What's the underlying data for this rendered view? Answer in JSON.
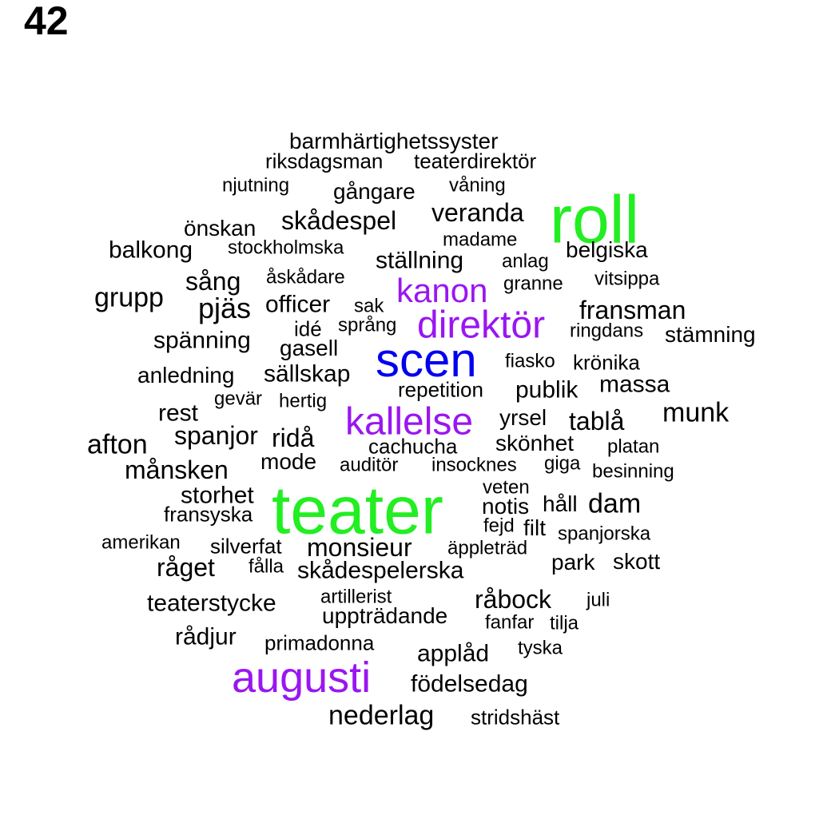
{
  "page_number": "42",
  "colors": {
    "default": "#000000",
    "green": "#22ee22",
    "blue": "#0000ee",
    "purple": "#9a16f0"
  },
  "words": [
    {
      "text": "barmhärtighetssyster",
      "color": "default"
    },
    {
      "text": "riksdagsman",
      "color": "default"
    },
    {
      "text": "teaterdirektör",
      "color": "default"
    },
    {
      "text": "njutning",
      "color": "default"
    },
    {
      "text": "gångare",
      "color": "default"
    },
    {
      "text": "våning",
      "color": "default"
    },
    {
      "text": "roll",
      "color": "green"
    },
    {
      "text": "veranda",
      "color": "default"
    },
    {
      "text": "önskan",
      "color": "default"
    },
    {
      "text": "skådespel",
      "color": "default"
    },
    {
      "text": "madame",
      "color": "default"
    },
    {
      "text": "balkong",
      "color": "default"
    },
    {
      "text": "stockholmska",
      "color": "default"
    },
    {
      "text": "belgiska",
      "color": "default"
    },
    {
      "text": "ställning",
      "color": "default"
    },
    {
      "text": "anlag",
      "color": "default"
    },
    {
      "text": "sång",
      "color": "default"
    },
    {
      "text": "åskådare",
      "color": "default"
    },
    {
      "text": "vitsippa",
      "color": "default"
    },
    {
      "text": "granne",
      "color": "default"
    },
    {
      "text": "kanon",
      "color": "purple"
    },
    {
      "text": "grupp",
      "color": "default"
    },
    {
      "text": "pjäs",
      "color": "default"
    },
    {
      "text": "officer",
      "color": "default"
    },
    {
      "text": "sak",
      "color": "default"
    },
    {
      "text": "fransman",
      "color": "default"
    },
    {
      "text": "direktör",
      "color": "purple"
    },
    {
      "text": "idé",
      "color": "default"
    },
    {
      "text": "språng",
      "color": "default"
    },
    {
      "text": "ringdans",
      "color": "default"
    },
    {
      "text": "stämning",
      "color": "default"
    },
    {
      "text": "spänning",
      "color": "default"
    },
    {
      "text": "gasell",
      "color": "default"
    },
    {
      "text": "scen",
      "color": "blue"
    },
    {
      "text": "fiasko",
      "color": "default"
    },
    {
      "text": "krönika",
      "color": "default"
    },
    {
      "text": "anledning",
      "color": "default"
    },
    {
      "text": "sällskap",
      "color": "default"
    },
    {
      "text": "massa",
      "color": "default"
    },
    {
      "text": "repetition",
      "color": "default"
    },
    {
      "text": "publik",
      "color": "default"
    },
    {
      "text": "gevär",
      "color": "default"
    },
    {
      "text": "hertig",
      "color": "default"
    },
    {
      "text": "munk",
      "color": "default"
    },
    {
      "text": "rest",
      "color": "default"
    },
    {
      "text": "kallelse",
      "color": "purple"
    },
    {
      "text": "yrsel",
      "color": "default"
    },
    {
      "text": "tablå",
      "color": "default"
    },
    {
      "text": "spanjor",
      "color": "default"
    },
    {
      "text": "ridå",
      "color": "default"
    },
    {
      "text": "afton",
      "color": "default"
    },
    {
      "text": "skönhet",
      "color": "default"
    },
    {
      "text": "cachucha",
      "color": "default"
    },
    {
      "text": "platan",
      "color": "default"
    },
    {
      "text": "mode",
      "color": "default"
    },
    {
      "text": "månsken",
      "color": "default"
    },
    {
      "text": "auditör",
      "color": "default"
    },
    {
      "text": "insocknes",
      "color": "default"
    },
    {
      "text": "giga",
      "color": "default"
    },
    {
      "text": "besinning",
      "color": "default"
    },
    {
      "text": "veten",
      "color": "default"
    },
    {
      "text": "storhet",
      "color": "default"
    },
    {
      "text": "teater",
      "color": "green"
    },
    {
      "text": "dam",
      "color": "default"
    },
    {
      "text": "håll",
      "color": "default"
    },
    {
      "text": "notis",
      "color": "default"
    },
    {
      "text": "fransyska",
      "color": "default"
    },
    {
      "text": "fejd",
      "color": "default"
    },
    {
      "text": "filt",
      "color": "default"
    },
    {
      "text": "spanjorska",
      "color": "default"
    },
    {
      "text": "amerikan",
      "color": "default"
    },
    {
      "text": "silverfat",
      "color": "default"
    },
    {
      "text": "monsieur",
      "color": "default"
    },
    {
      "text": "äppleträd",
      "color": "default"
    },
    {
      "text": "park",
      "color": "default"
    },
    {
      "text": "skott",
      "color": "default"
    },
    {
      "text": "råget",
      "color": "default"
    },
    {
      "text": "fålla",
      "color": "default"
    },
    {
      "text": "skådespelerska",
      "color": "default"
    },
    {
      "text": "artillerist",
      "color": "default"
    },
    {
      "text": "råbock",
      "color": "default"
    },
    {
      "text": "juli",
      "color": "default"
    },
    {
      "text": "teaterstycke",
      "color": "default"
    },
    {
      "text": "uppträdande",
      "color": "default"
    },
    {
      "text": "fanfar",
      "color": "default"
    },
    {
      "text": "tilja",
      "color": "default"
    },
    {
      "text": "rådjur",
      "color": "default"
    },
    {
      "text": "primadonna",
      "color": "default"
    },
    {
      "text": "tyska",
      "color": "default"
    },
    {
      "text": "applåd",
      "color": "default"
    },
    {
      "text": "augusti",
      "color": "purple"
    },
    {
      "text": "födelsedag",
      "color": "default"
    },
    {
      "text": "nederlag",
      "color": "default"
    },
    {
      "text": "stridshäst",
      "color": "default"
    }
  ]
}
